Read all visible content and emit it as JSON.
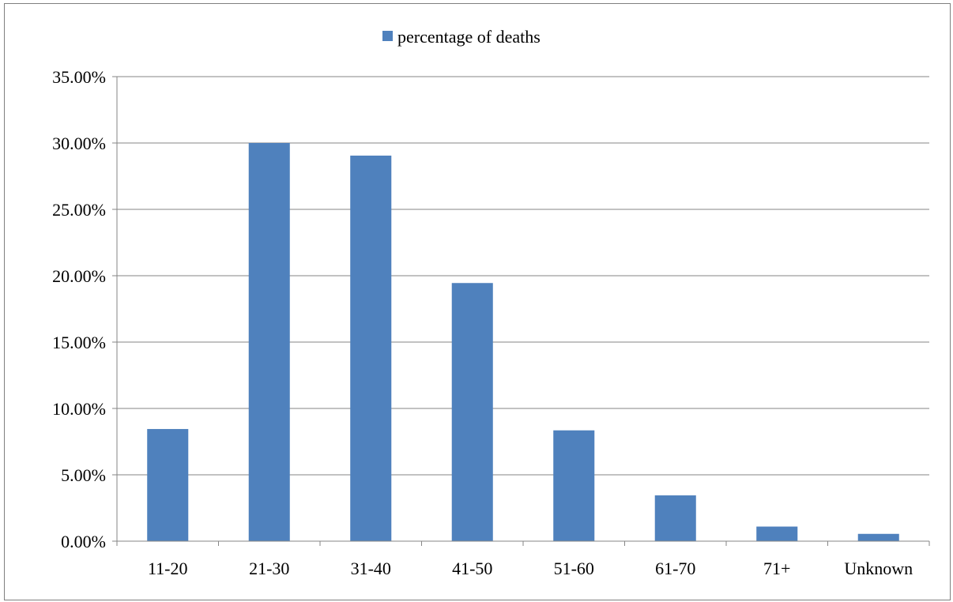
{
  "chart_data": {
    "type": "bar",
    "categories": [
      "11-20",
      "21-30",
      "31-40",
      "41-50",
      "51-60",
      "61-70",
      "71+",
      "Unknown"
    ],
    "series": [
      {
        "name": "percentage of deaths",
        "values": [
          8.45,
          30.0,
          29.05,
          19.45,
          8.35,
          3.45,
          1.1,
          0.55
        ],
        "color": "#4f81bd"
      }
    ],
    "title": "",
    "xlabel": "",
    "ylabel": "",
    "ylim": [
      0,
      35
    ],
    "yticks": [
      0,
      5,
      10,
      15,
      20,
      25,
      30,
      35
    ],
    "ytick_labels": [
      "0.00%",
      "5.00%",
      "10.00%",
      "15.00%",
      "20.00%",
      "25.00%",
      "30.00%",
      "35.00%"
    ],
    "grid": true,
    "legend": {
      "position": "top",
      "labels": [
        "percentage of deaths"
      ]
    }
  }
}
